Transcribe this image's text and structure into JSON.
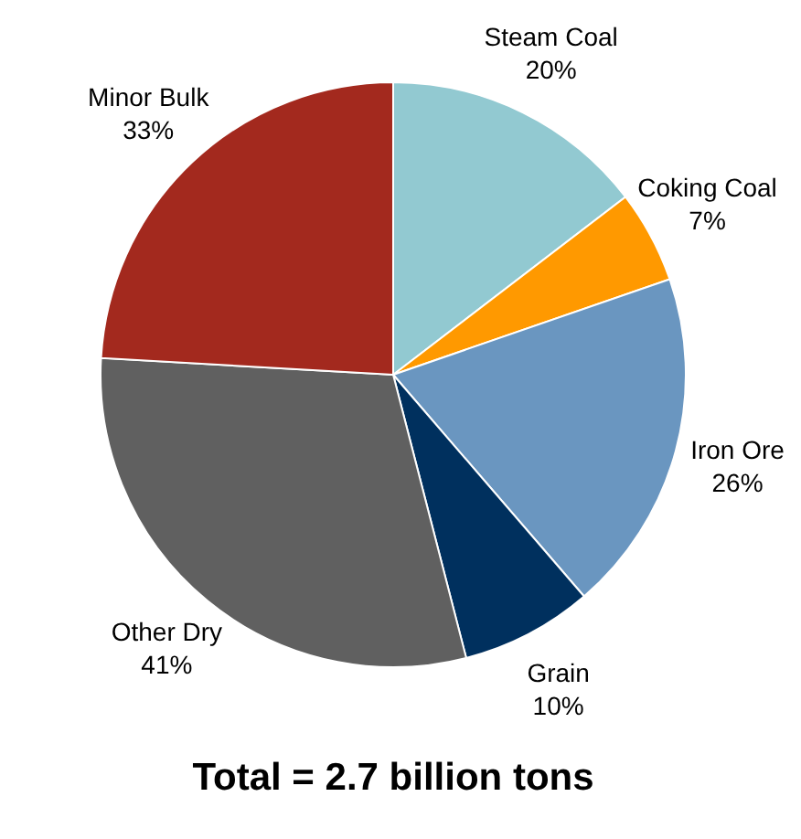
{
  "chart_data": {
    "type": "pie",
    "title": "Total = 2.7 billion tons",
    "categories": [
      "Steam Coal",
      "Coking Coal",
      "Iron Ore",
      "Grain",
      "Other Dry",
      "Minor Bulk"
    ],
    "values": [
      20,
      7,
      26,
      10,
      41,
      33
    ],
    "value_labels": [
      "20%",
      "7%",
      "26%",
      "10%",
      "41%",
      "33%"
    ],
    "colors": [
      "#92c9d1",
      "#ff9900",
      "#6a96c0",
      "#00305e",
      "#606060",
      "#a3291e"
    ],
    "legend": false
  }
}
